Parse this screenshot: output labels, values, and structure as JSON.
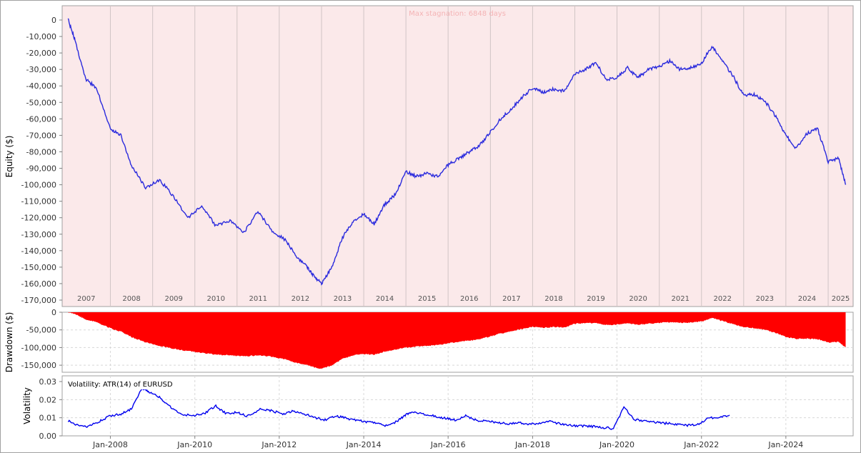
{
  "chart_data": [
    {
      "type": "line",
      "ylabel": "Equity ($)",
      "annotation": "Max stagnation: 6848 days",
      "year_labels": [
        "2007",
        "2008",
        "2009",
        "2010",
        "2011",
        "2012",
        "2013",
        "2014",
        "2015",
        "2016",
        "2017",
        "2018",
        "2019",
        "2020",
        "2021",
        "2022",
        "2023",
        "2024",
        "2025"
      ],
      "ylim": [
        -170000,
        0
      ],
      "y_ticks": [
        0,
        -10000,
        -20000,
        -30000,
        -40000,
        -50000,
        -60000,
        -70000,
        -80000,
        -90000,
        -100000,
        -110000,
        -120000,
        -130000,
        -140000,
        -150000,
        -160000,
        -170000
      ],
      "y_tick_labels": [
        "0",
        "-10,000",
        "-20,000",
        "-30,000",
        "-40,000",
        "-50,000",
        "-60,000",
        "-70,000",
        "-80,000",
        "-90,000",
        "-100,000",
        "-110,000",
        "-120,000",
        "-130,000",
        "-140,000",
        "-150,000",
        "-160,000",
        "-170,000"
      ],
      "grid": true,
      "background_color": "#fbe9ea",
      "line_color": "#2a2add",
      "series": [
        {
          "x": [
            "2007-01",
            "2007-03",
            "2007-06",
            "2007-09",
            "2008-01",
            "2008-04",
            "2008-07",
            "2008-11",
            "2009-03",
            "2009-07",
            "2009-11",
            "2010-03",
            "2010-07",
            "2010-11",
            "2011-03",
            "2011-07",
            "2011-11",
            "2012-03",
            "2012-06",
            "2012-09",
            "2012-11",
            "2013-01",
            "2013-04",
            "2013-07",
            "2013-10",
            "2014-01",
            "2014-04",
            "2014-07",
            "2014-10",
            "2015-01",
            "2015-04",
            "2015-07",
            "2015-10",
            "2016-01",
            "2016-04",
            "2016-07",
            "2016-10",
            "2017-01",
            "2017-04",
            "2017-07",
            "2017-10",
            "2018-01",
            "2018-04",
            "2018-07",
            "2018-10",
            "2019-01",
            "2019-04",
            "2019-07",
            "2019-10",
            "2020-01",
            "2020-04",
            "2020-07",
            "2020-10",
            "2021-01",
            "2021-04",
            "2021-07",
            "2021-10",
            "2022-01",
            "2022-04",
            "2022-07",
            "2022-10",
            "2023-01",
            "2023-04",
            "2023-07",
            "2023-10",
            "2024-01",
            "2024-04",
            "2024-07",
            "2024-10",
            "2025-01",
            "2025-04",
            "2025-06"
          ],
          "y": [
            0,
            -12000,
            -36000,
            -41000,
            -66000,
            -70000,
            -88000,
            -102000,
            -97000,
            -107000,
            -120000,
            -113000,
            -125000,
            -122000,
            -129000,
            -116000,
            -128000,
            -134000,
            -144000,
            -150000,
            -156000,
            -160000,
            -150000,
            -132000,
            -122000,
            -118000,
            -124000,
            -112000,
            -106000,
            -92000,
            -95000,
            -93000,
            -95000,
            -88000,
            -84000,
            -80000,
            -76000,
            -68000,
            -60000,
            -54000,
            -47000,
            -41000,
            -44000,
            -42000,
            -43000,
            -33000,
            -30000,
            -26000,
            -36000,
            -35000,
            -29000,
            -35000,
            -30000,
            -28000,
            -25000,
            -30000,
            -29000,
            -26000,
            -16000,
            -25000,
            -34000,
            -46000,
            -45000,
            -49000,
            -58000,
            -70000,
            -78000,
            -69000,
            -66000,
            -86000,
            -84000,
            -100000
          ]
        }
      ]
    },
    {
      "type": "area",
      "ylabel": "Drawdown ($)",
      "ylim": [
        -170000,
        0
      ],
      "y_ticks": [
        0,
        -50000,
        -100000,
        -150000
      ],
      "y_tick_labels": [
        "0",
        "-50,000",
        "-100,000",
        "-150,000"
      ],
      "grid": true,
      "fill_color": "#ff0000",
      "series": [
        {
          "x": [
            "2007-01",
            "2007-03",
            "2007-06",
            "2007-09",
            "2008-01",
            "2008-04",
            "2008-07",
            "2008-11",
            "2009-03",
            "2009-07",
            "2009-11",
            "2010-03",
            "2010-07",
            "2010-11",
            "2011-03",
            "2011-07",
            "2011-11",
            "2012-03",
            "2012-06",
            "2012-09",
            "2012-11",
            "2013-01",
            "2013-04",
            "2013-07",
            "2013-10",
            "2014-01",
            "2014-04",
            "2014-07",
            "2014-10",
            "2015-01",
            "2015-04",
            "2015-07",
            "2015-10",
            "2016-01",
            "2016-04",
            "2016-07",
            "2016-10",
            "2017-01",
            "2017-04",
            "2017-07",
            "2017-10",
            "2018-01",
            "2018-04",
            "2018-07",
            "2018-10",
            "2019-01",
            "2019-04",
            "2019-07",
            "2019-10",
            "2020-01",
            "2020-04",
            "2020-07",
            "2020-10",
            "2021-01",
            "2021-04",
            "2021-07",
            "2021-10",
            "2022-01",
            "2022-04",
            "2022-07",
            "2022-10",
            "2023-01",
            "2023-04",
            "2023-07",
            "2023-10",
            "2024-01",
            "2024-04",
            "2024-07",
            "2024-10",
            "2025-01",
            "2025-04",
            "2025-06"
          ],
          "y": [
            0,
            -5000,
            -20000,
            -28000,
            -45000,
            -55000,
            -70000,
            -85000,
            -95000,
            -103000,
            -110000,
            -115000,
            -120000,
            -122000,
            -125000,
            -122000,
            -126000,
            -134000,
            -144000,
            -150000,
            -156000,
            -160000,
            -150000,
            -132000,
            -122000,
            -118000,
            -120000,
            -112000,
            -106000,
            -100000,
            -97000,
            -95000,
            -93000,
            -88000,
            -84000,
            -80000,
            -76000,
            -68000,
            -60000,
            -54000,
            -47000,
            -41000,
            -44000,
            -42000,
            -43000,
            -33000,
            -30000,
            -30000,
            -36000,
            -35000,
            -31000,
            -35000,
            -32000,
            -30000,
            -28000,
            -30000,
            -29000,
            -26000,
            -16000,
            -25000,
            -34000,
            -42000,
            -45000,
            -49000,
            -58000,
            -70000,
            -75000,
            -75000,
            -76000,
            -86000,
            -84000,
            -100000
          ]
        }
      ]
    },
    {
      "type": "line",
      "ylabel": "Volatility",
      "legend": "Volatility: ATR(14) of EURUSD",
      "x_tick_labels": [
        "Jan-2008",
        "Jan-2010",
        "Jan-2012",
        "Jan-2014",
        "Jan-2016",
        "Jan-2018",
        "Jan-2020",
        "Jan-2022",
        "Jan-2024"
      ],
      "ylim": [
        0,
        0.03
      ],
      "y_ticks": [
        0.03,
        0.02,
        0.01,
        0.0
      ],
      "y_tick_labels": [
        "0.03",
        "0.02",
        "0.01",
        "0.00"
      ],
      "grid": true,
      "line_color": "#0000ee",
      "series": [
        {
          "x": [
            "2007-01",
            "2007-04",
            "2007-07",
            "2007-10",
            "2008-01",
            "2008-04",
            "2008-07",
            "2008-10",
            "2008-12",
            "2009-03",
            "2009-06",
            "2009-09",
            "2010-01",
            "2010-04",
            "2010-07",
            "2010-10",
            "2011-01",
            "2011-04",
            "2011-08",
            "2011-11",
            "2012-02",
            "2012-05",
            "2012-08",
            "2012-11",
            "2013-02",
            "2013-05",
            "2013-08",
            "2013-11",
            "2014-02",
            "2014-05",
            "2014-08",
            "2014-11",
            "2015-01",
            "2015-03",
            "2015-06",
            "2015-09",
            "2015-12",
            "2016-03",
            "2016-06",
            "2016-09",
            "2016-12",
            "2017-03",
            "2017-06",
            "2017-09",
            "2017-12",
            "2018-03",
            "2018-06",
            "2018-09",
            "2018-12",
            "2019-03",
            "2019-06",
            "2019-09",
            "2019-12",
            "2020-03",
            "2020-06",
            "2020-09",
            "2020-12",
            "2021-03",
            "2021-06",
            "2021-09",
            "2021-12",
            "2022-03",
            "2022-06",
            "2022-09"
          ],
          "y": [
            0.0082,
            0.0058,
            0.0052,
            0.0081,
            0.0111,
            0.0121,
            0.015,
            0.0265,
            0.024,
            0.0215,
            0.0162,
            0.012,
            0.0112,
            0.0126,
            0.0165,
            0.0121,
            0.0131,
            0.0108,
            0.015,
            0.0138,
            0.0121,
            0.0136,
            0.0122,
            0.0101,
            0.0089,
            0.0112,
            0.0097,
            0.0086,
            0.0075,
            0.0068,
            0.0055,
            0.0088,
            0.0118,
            0.0135,
            0.012,
            0.011,
            0.0098,
            0.0088,
            0.011,
            0.0086,
            0.0082,
            0.0075,
            0.0068,
            0.0072,
            0.0063,
            0.0071,
            0.0082,
            0.0065,
            0.0058,
            0.0055,
            0.0052,
            0.0046,
            0.004,
            0.016,
            0.009,
            0.0081,
            0.0075,
            0.0069,
            0.0065,
            0.0058,
            0.0063,
            0.01,
            0.0098,
            0.0115
          ]
        }
      ]
    }
  ]
}
